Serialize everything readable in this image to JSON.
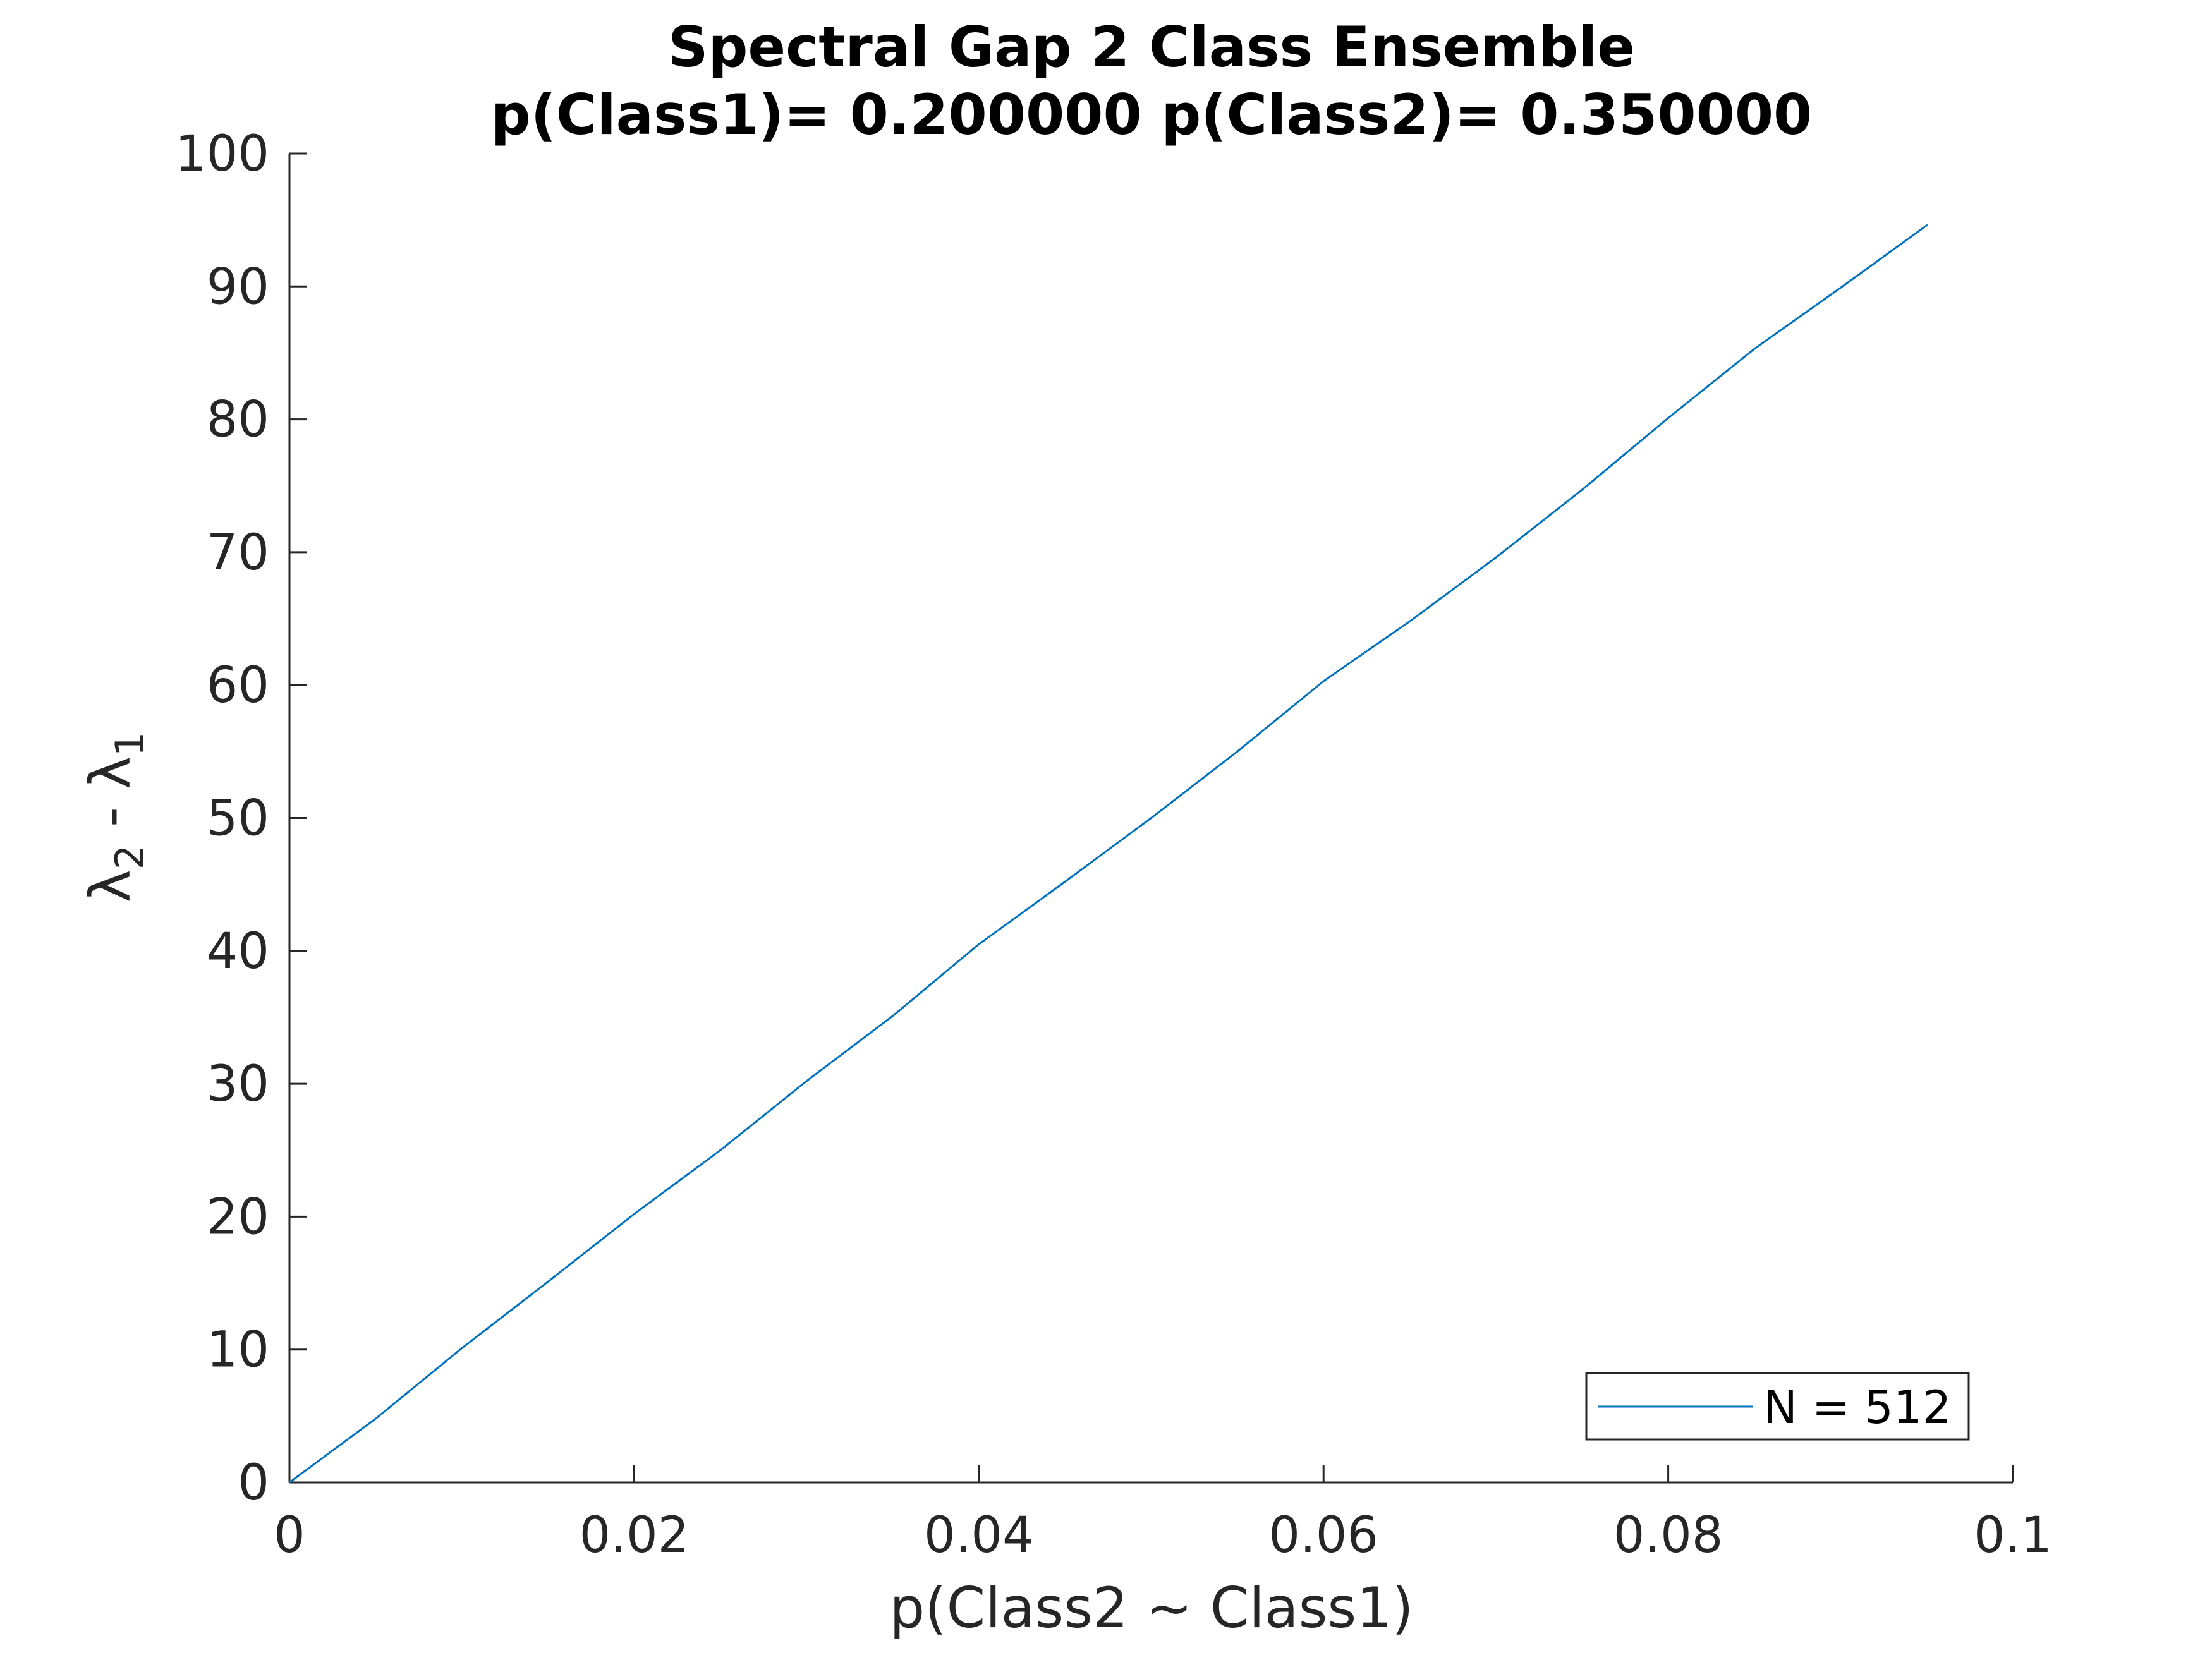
{
  "chart_data": {
    "type": "line",
    "title": [
      "Spectral Gap 2 Class Ensemble",
      "p(Class1)= 0.200000 p(Class2)= 0.350000"
    ],
    "xlabel": "p(Class2  ~ Class1)",
    "ylabel": {
      "base": "λ",
      "sub1": "2",
      "mid": " - λ",
      "sub2": "1"
    },
    "xlim": [
      0,
      0.1
    ],
    "ylim": [
      0,
      100
    ],
    "xticks": [
      0,
      0.02,
      0.04,
      0.06,
      0.08,
      0.1
    ],
    "xtick_labels": [
      "0",
      "0.02",
      "0.04",
      "0.06",
      "0.08",
      "0.1"
    ],
    "yticks": [
      0,
      10,
      20,
      30,
      40,
      50,
      60,
      70,
      80,
      90,
      100
    ],
    "ytick_labels": [
      "0",
      "10",
      "20",
      "30",
      "40",
      "50",
      "60",
      "70",
      "80",
      "90",
      "100"
    ],
    "grid": false,
    "legend_position": "bottom-right",
    "series": [
      {
        "name": "N = 512",
        "color": "#0072BD",
        "x": [
          0,
          0.005,
          0.01,
          0.015,
          0.02,
          0.025,
          0.03,
          0.035,
          0.04,
          0.045,
          0.05,
          0.055,
          0.06,
          0.065,
          0.07,
          0.075,
          0.08,
          0.085,
          0.09,
          0.095
        ],
        "y": [
          0,
          4.8,
          10.1,
          15.1,
          20.2,
          25.0,
          30.2,
          35.1,
          40.5,
          45.2,
          50.0,
          55.0,
          60.3,
          64.8,
          69.6,
          74.7,
          80.1,
          85.3,
          89.9,
          94.6
        ]
      }
    ]
  }
}
